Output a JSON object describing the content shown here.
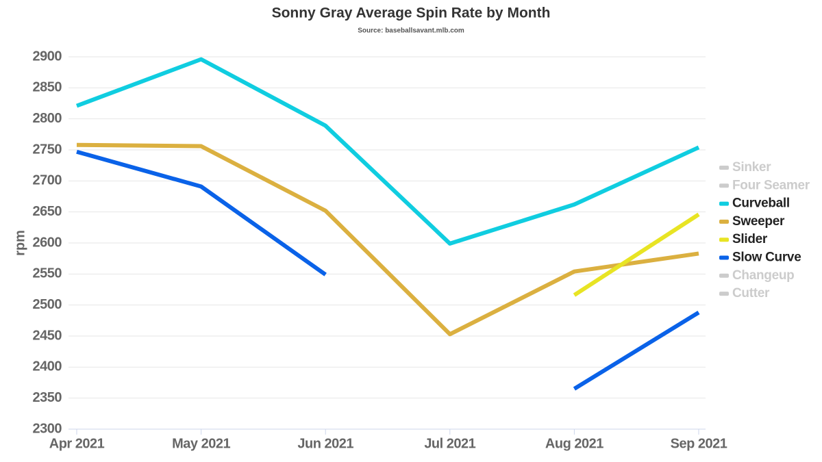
{
  "chart_data": {
    "type": "line",
    "title": "Sonny Gray Average Spin Rate by Month",
    "subtitle": "Source: baseballsavant.mlb.com",
    "y_label": "rpm",
    "categories": [
      "Apr 2021",
      "May 2021",
      "Jun 2021",
      "Jul 2021",
      "Aug 2021",
      "Sep 2021"
    ],
    "series": [
      {
        "name": "Sinker",
        "color": "#cccccc",
        "hidden": true,
        "values": [
          null,
          null,
          null,
          null,
          null,
          null
        ]
      },
      {
        "name": "Four Seamer",
        "color": "#cccccc",
        "hidden": true,
        "values": [
          null,
          null,
          null,
          null,
          null,
          null
        ]
      },
      {
        "name": "Curveball",
        "color": "#10cde0",
        "values": [
          2821,
          2896,
          2789,
          2599,
          2662,
          2754
        ]
      },
      {
        "name": "Sweeper",
        "color": "#dbb040",
        "values": [
          2758,
          2756,
          2652,
          2453,
          2554,
          2583
        ]
      },
      {
        "name": "Slider",
        "color": "#e8e424",
        "values": [
          null,
          null,
          null,
          null,
          2516,
          2646
        ]
      },
      {
        "name": "Slow Curve",
        "color": "#0a62e8",
        "values": [
          2747,
          2691,
          2549,
          null,
          2365,
          2488
        ]
      },
      {
        "name": "Changeup",
        "color": "#cccccc",
        "hidden": true,
        "values": [
          null,
          null,
          null,
          null,
          null,
          null
        ]
      },
      {
        "name": "Cutter",
        "color": "#cccccc",
        "hidden": true,
        "values": [
          null,
          null,
          null,
          null,
          null,
          null
        ]
      }
    ],
    "ylim": [
      2300,
      2900
    ],
    "yticks": [
      2300,
      2350,
      2400,
      2450,
      2500,
      2550,
      2600,
      2650,
      2700,
      2750,
      2800,
      2850,
      2900
    ],
    "grid": true,
    "legend": "right"
  }
}
